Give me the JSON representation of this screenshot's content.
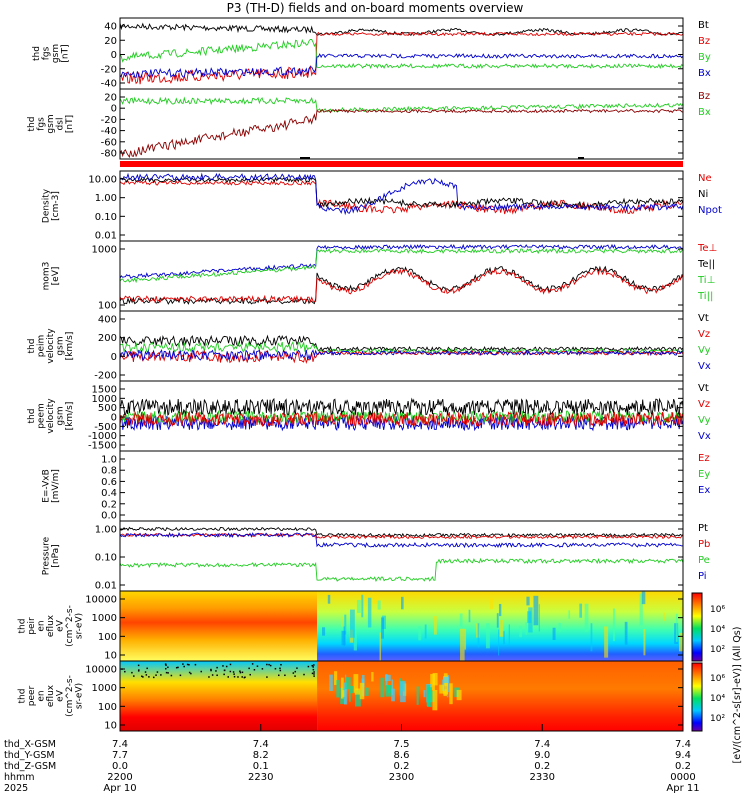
{
  "title": "P3 (TH-D) fields and on-board moments overview",
  "colors": {
    "black": "#000000",
    "red": "#e00000",
    "green": "#22cc22",
    "blue": "#0000cc",
    "darkred": "#8b0000",
    "flag": "#ff0000"
  },
  "x_axis": {
    "row_labels": [
      "thd_X-GSM",
      "thd_Y-GSM",
      "thd_Z-GSM",
      "hhmm",
      "2025"
    ],
    "ticks": [
      {
        "x": "22:00",
        "X": "7.4",
        "Y": "7.7",
        "Z": "0.0",
        "hhmm": "2200",
        "date": "Apr 10"
      },
      {
        "x": "22:30",
        "X": "7.4",
        "Y": "8.2",
        "Z": "0.1",
        "hhmm": "2230",
        "date": ""
      },
      {
        "x": "23:00",
        "X": "7.5",
        "Y": "8.6",
        "Z": "0.2",
        "hhmm": "2300",
        "date": ""
      },
      {
        "x": "23:30",
        "X": "7.4",
        "Y": "9.0",
        "Z": "0.2",
        "hhmm": "2330",
        "date": ""
      },
      {
        "x": "00:00",
        "X": "7.4",
        "Y": "9.4",
        "Z": "0.2",
        "hhmm": "0000",
        "date": "Apr 11"
      }
    ]
  },
  "colorbar": {
    "label": "[eV/(cm^2-s[sr]-eV)] (All Qs)",
    "ticks_top": [
      "10^6",
      "10^4",
      "10^2"
    ],
    "ticks_bottom": [
      "10^6",
      "10^4",
      "10^2"
    ]
  },
  "chart_data": [
    {
      "type": "line",
      "ylabel": [
        "thd",
        "fgs",
        "gsm",
        "[nT]"
      ],
      "yticks": [
        "40",
        "20",
        "0",
        "-20",
        "-40"
      ],
      "ylim": [
        -40,
        50
      ],
      "legend": [
        {
          "name": "Bt",
          "color": "#000000"
        },
        {
          "name": "Bz",
          "color": "#e00000"
        },
        {
          "name": "By",
          "color": "#22cc22"
        },
        {
          "name": "Bx",
          "color": "#0000cc"
        }
      ]
    },
    {
      "type": "line",
      "ylabel": [
        "thd",
        "fgs",
        "gsm",
        "dsl",
        "[nT]"
      ],
      "yticks": [
        "20",
        "0",
        "-20",
        "-40",
        "-60",
        "-80"
      ],
      "ylim": [
        -90,
        30
      ],
      "legend": [
        {
          "name": "Bz",
          "color": "#8b0000"
        },
        {
          "name": "Bx",
          "color": "#22cc22"
        }
      ]
    },
    {
      "type": "line",
      "ylabel": [
        "Density",
        "[cm-3]"
      ],
      "yticks": [
        "10.00",
        "1.00",
        "0.10",
        "0.01"
      ],
      "log": true,
      "legend": [
        {
          "name": "Ne",
          "color": "#e00000"
        },
        {
          "name": "Ni",
          "color": "#000000"
        },
        {
          "name": "Npot",
          "color": "#0000cc"
        }
      ]
    },
    {
      "type": "line",
      "ylabel": [
        "mom3",
        "[eV]"
      ],
      "yticks": [
        "1000",
        "100"
      ],
      "log": true,
      "legend": [
        {
          "name": "Te⊥",
          "color": "#e00000"
        },
        {
          "name": "Te||",
          "color": "#000000"
        },
        {
          "name": "Ti⊥",
          "color": "#22cc22"
        },
        {
          "name": "Ti||",
          "color": "#22cc22"
        }
      ]
    },
    {
      "type": "line",
      "ylabel": [
        "thd",
        "peim",
        "velocity",
        "gsm",
        "[km/s]"
      ],
      "yticks": [
        "400",
        "200",
        "0",
        "-200"
      ],
      "ylim": [
        -250,
        450
      ],
      "legend": [
        {
          "name": "Vt",
          "color": "#000000"
        },
        {
          "name": "Vz",
          "color": "#e00000"
        },
        {
          "name": "Vy",
          "color": "#22cc22"
        },
        {
          "name": "Vx",
          "color": "#0000cc"
        }
      ]
    },
    {
      "type": "line",
      "ylabel": [
        "thd",
        "peem",
        "velocity",
        "gsm",
        "[km/s]"
      ],
      "yticks": [
        "1500",
        "1000",
        "500",
        "0",
        "-500",
        "-1000",
        "-1500"
      ],
      "ylim": [
        -1500,
        1500
      ],
      "legend": [
        {
          "name": "Vt",
          "color": "#000000"
        },
        {
          "name": "Vz",
          "color": "#e00000"
        },
        {
          "name": "Vy",
          "color": "#22cc22"
        },
        {
          "name": "Vx",
          "color": "#0000cc"
        }
      ]
    },
    {
      "type": "line",
      "ylabel": [
        "E=-VxB",
        "[mV/m]"
      ],
      "yticks": [
        "1.0",
        "0.8",
        "0.6",
        "0.4",
        "0.2",
        "0.0"
      ],
      "ylim": [
        0,
        1
      ],
      "legend": [
        {
          "name": "Ez",
          "color": "#e00000"
        },
        {
          "name": "Ey",
          "color": "#22cc22"
        },
        {
          "name": "Ex",
          "color": "#0000cc"
        }
      ]
    },
    {
      "type": "line",
      "ylabel": [
        "Pressure",
        "[nPa]"
      ],
      "yticks": [
        "1.00",
        "0.10",
        "0.01"
      ],
      "log": true,
      "legend": [
        {
          "name": "Pt",
          "color": "#000000"
        },
        {
          "name": "Pb",
          "color": "#e00000"
        },
        {
          "name": "Pe",
          "color": "#22cc22"
        },
        {
          "name": "Pi",
          "color": "#0000cc"
        }
      ]
    },
    {
      "type": "heatmap",
      "ylabel": [
        "thd",
        "peir",
        "en",
        "eflux",
        "eV",
        "(cm^2-s-",
        "sr-eV)"
      ],
      "yticks": [
        "10000",
        "1000",
        "100",
        "10"
      ],
      "log": true
    },
    {
      "type": "heatmap",
      "ylabel": [
        "thd",
        "peer",
        "en",
        "eflux",
        "eV",
        "(cm^2-s-",
        "sr-eV)"
      ],
      "yticks": [
        "10000",
        "1000",
        "100",
        "10"
      ],
      "log": true
    }
  ]
}
